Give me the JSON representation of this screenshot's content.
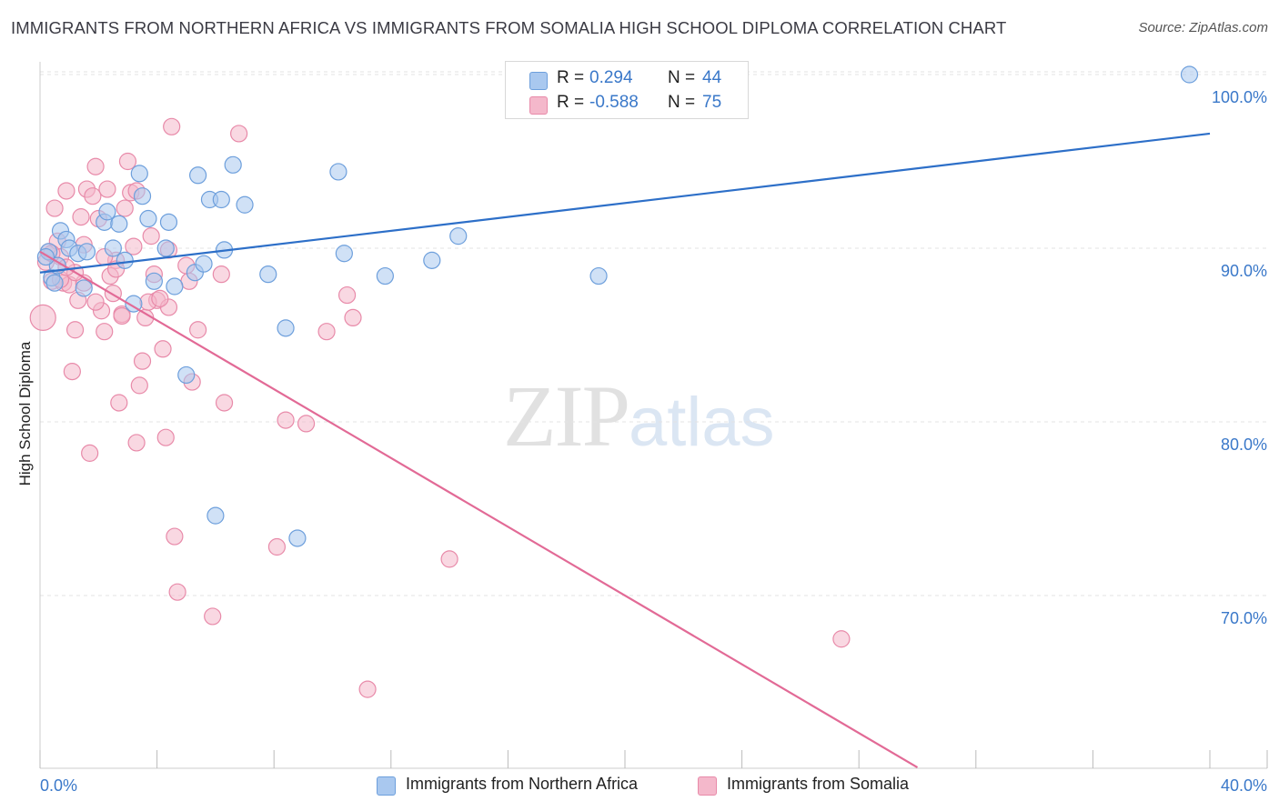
{
  "header": {
    "title": "IMMIGRANTS FROM NORTHERN AFRICA VS IMMIGRANTS FROM SOMALIA HIGH SCHOOL DIPLOMA CORRELATION CHART",
    "source": "Source: ZipAtlas.com"
  },
  "watermark": {
    "zip": "ZIP",
    "atlas": "atlas"
  },
  "legend": {
    "rows": [
      {
        "r_label": "R =",
        "r_value": "0.294",
        "n_label": "N =",
        "n_value": "44"
      },
      {
        "r_label": "R =",
        "r_value": "-0.588",
        "n_label": "N =",
        "n_value": "75"
      }
    ]
  },
  "colors": {
    "blue_fill": "#a9c8ef",
    "blue_stroke": "#6d9fdc",
    "blue_line": "#2d6fc8",
    "pink_fill": "#f4b8cb",
    "pink_stroke": "#e88aa9",
    "pink_line": "#e26a96",
    "tick_text": "#3a78c9",
    "grid": "#e3e3e3"
  },
  "chart_data": {
    "type": "scatter",
    "title": "IMMIGRANTS FROM NORTHERN AFRICA VS IMMIGRANTS FROM SOMALIA HIGH SCHOOL DIPLOMA CORRELATION CHART",
    "xlabel": "",
    "ylabel": "High School Diploma",
    "xlim": [
      0,
      40
    ],
    "ylim": [
      60,
      100.5
    ],
    "x_tick_labels": [
      "0.0%",
      "40.0%"
    ],
    "y_ticks": [
      70,
      80,
      90,
      100
    ],
    "y_tick_labels": [
      "70.0%",
      "80.0%",
      "90.0%",
      "100.0%"
    ],
    "grid": true,
    "legend_position": "top-center",
    "series": [
      {
        "name": "Immigrants from Northern Africa",
        "color": "#a9c8ef",
        "r": 0.294,
        "n": 44,
        "trend": {
          "x": [
            0,
            40
          ],
          "y": [
            88.6,
            96.6
          ]
        },
        "points": [
          [
            0.3,
            89.8
          ],
          [
            0.4,
            88.3
          ],
          [
            0.5,
            88.0
          ],
          [
            0.6,
            89.0
          ],
          [
            0.7,
            91.0
          ],
          [
            0.9,
            90.5
          ],
          [
            1.0,
            90.0
          ],
          [
            1.3,
            89.7
          ],
          [
            1.5,
            87.7
          ],
          [
            1.6,
            89.8
          ],
          [
            2.2,
            91.5
          ],
          [
            2.3,
            92.1
          ],
          [
            2.5,
            90.0
          ],
          [
            2.7,
            91.4
          ],
          [
            2.9,
            89.3
          ],
          [
            3.2,
            86.8
          ],
          [
            3.4,
            94.3
          ],
          [
            3.5,
            93.0
          ],
          [
            3.7,
            91.7
          ],
          [
            3.9,
            88.1
          ],
          [
            4.3,
            90.0
          ],
          [
            4.4,
            91.5
          ],
          [
            4.6,
            87.8
          ],
          [
            5.0,
            82.7
          ],
          [
            5.3,
            88.6
          ],
          [
            5.4,
            94.2
          ],
          [
            5.6,
            89.1
          ],
          [
            5.8,
            92.8
          ],
          [
            6.0,
            74.6
          ],
          [
            6.2,
            92.8
          ],
          [
            6.3,
            89.9
          ],
          [
            6.6,
            94.8
          ],
          [
            7.0,
            92.5
          ],
          [
            7.8,
            88.5
          ],
          [
            8.4,
            85.4
          ],
          [
            8.8,
            73.3
          ],
          [
            10.2,
            94.4
          ],
          [
            10.4,
            89.7
          ],
          [
            11.8,
            88.4
          ],
          [
            13.4,
            89.3
          ],
          [
            14.3,
            90.7
          ],
          [
            19.1,
            88.4
          ],
          [
            39.3,
            100.0
          ],
          [
            0.2,
            89.5
          ]
        ]
      },
      {
        "name": "Immigrants from Somalia",
        "color": "#f4b8cb",
        "r": -0.588,
        "n": 75,
        "trend": {
          "x": [
            0,
            30
          ],
          "y": [
            89.8,
            60.1
          ]
        },
        "points": [
          [
            0.1,
            86.0
          ],
          [
            0.2,
            89.2
          ],
          [
            0.3,
            89.8
          ],
          [
            0.4,
            88.1
          ],
          [
            0.5,
            92.3
          ],
          [
            0.6,
            90.4
          ],
          [
            0.7,
            89.5
          ],
          [
            0.8,
            88.0
          ],
          [
            0.9,
            93.3
          ],
          [
            1.0,
            87.9
          ],
          [
            1.1,
            82.9
          ],
          [
            1.2,
            85.3
          ],
          [
            1.3,
            87.0
          ],
          [
            1.4,
            91.8
          ],
          [
            1.5,
            88.0
          ],
          [
            1.6,
            93.4
          ],
          [
            1.7,
            78.2
          ],
          [
            1.8,
            93.0
          ],
          [
            1.9,
            94.7
          ],
          [
            2.0,
            91.7
          ],
          [
            2.1,
            86.4
          ],
          [
            2.2,
            85.2
          ],
          [
            2.3,
            93.4
          ],
          [
            2.4,
            88.4
          ],
          [
            2.5,
            87.4
          ],
          [
            2.6,
            89.3
          ],
          [
            2.7,
            81.1
          ],
          [
            2.8,
            86.2
          ],
          [
            2.9,
            92.3
          ],
          [
            3.0,
            95.0
          ],
          [
            3.1,
            93.2
          ],
          [
            3.2,
            90.1
          ],
          [
            3.3,
            78.8
          ],
          [
            3.4,
            82.1
          ],
          [
            3.5,
            83.5
          ],
          [
            3.6,
            86.0
          ],
          [
            3.8,
            90.7
          ],
          [
            3.9,
            88.5
          ],
          [
            4.0,
            87.0
          ],
          [
            4.2,
            84.2
          ],
          [
            4.3,
            79.1
          ],
          [
            4.4,
            86.6
          ],
          [
            4.5,
            97.0
          ],
          [
            4.6,
            73.4
          ],
          [
            4.7,
            70.2
          ],
          [
            5.1,
            88.1
          ],
          [
            5.2,
            82.3
          ],
          [
            5.4,
            85.3
          ],
          [
            5.9,
            68.8
          ],
          [
            6.3,
            81.1
          ],
          [
            6.8,
            96.6
          ],
          [
            8.1,
            72.8
          ],
          [
            8.4,
            80.1
          ],
          [
            9.1,
            79.9
          ],
          [
            9.8,
            85.2
          ],
          [
            10.5,
            87.3
          ],
          [
            10.7,
            86.0
          ],
          [
            11.2,
            64.6
          ],
          [
            14.0,
            72.1
          ],
          [
            27.4,
            67.5
          ],
          [
            0.4,
            89.7
          ],
          [
            0.7,
            88.2
          ],
          [
            1.2,
            88.6
          ],
          [
            2.6,
            88.8
          ],
          [
            3.7,
            86.9
          ],
          [
            4.1,
            87.1
          ],
          [
            4.4,
            89.9
          ],
          [
            5.0,
            89.0
          ],
          [
            1.5,
            90.2
          ],
          [
            2.2,
            89.5
          ],
          [
            0.9,
            88.9
          ],
          [
            3.3,
            93.3
          ],
          [
            1.9,
            86.9
          ],
          [
            2.8,
            86.1
          ],
          [
            6.2,
            88.5
          ]
        ]
      }
    ]
  },
  "bottom_legend": {
    "items": [
      {
        "label": "Immigrants from Northern Africa"
      },
      {
        "label": "Immigrants from Somalia"
      }
    ]
  }
}
